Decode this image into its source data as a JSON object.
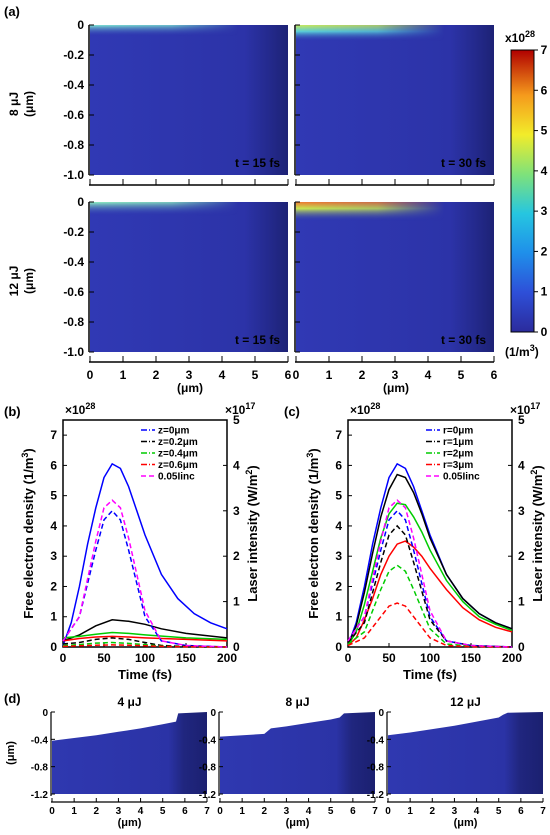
{
  "labels": {
    "a": "(a)",
    "b": "(b)",
    "c": "(c)",
    "d": "(d)",
    "row1": "8 μJ",
    "row2": "12 μJ",
    "um": "(μm)",
    "t15": "t = 15 fs",
    "t30": "t = 30 fs",
    "cb_exp": "x10",
    "cb_exp_pow": "28",
    "cb_unit": "(1/m",
    "cb_unit_sup": "3",
    "cb_unit_close": ")",
    "time": "Time (fs)",
    "ylab_left": "Free electron density (1/m",
    "ylab_left_sup": "3",
    "ylab_left_close": ")",
    "ylab_right": "Laser intensity (W/m",
    "ylab_right_sup": "2",
    "ylab_right_close": ")",
    "mul": "×10",
    "pow28": "28",
    "pow17": "17",
    "d1": "4 μJ",
    "d2": "8 μJ",
    "d3": "12 μJ"
  },
  "chart_data": [
    {
      "id": "a",
      "type": "heatmap",
      "xlim": [
        0,
        6
      ],
      "ylim": [
        -1.0,
        0
      ],
      "xticks": [
        "0",
        "1",
        "2",
        "3",
        "4",
        "5",
        "6"
      ],
      "yticks": [
        "0",
        "-0.2",
        "-0.4",
        "-0.6",
        "-0.8",
        "-1.0"
      ],
      "xlabel": "(μm)",
      "ylabel": "(μm)",
      "panels": [
        {
          "row": "8 μJ",
          "time": "t = 15 fs",
          "peak": 1.2
        },
        {
          "row": "8 μJ",
          "time": "t = 30 fs",
          "peak": 4.0
        },
        {
          "row": "12 μJ",
          "time": "t = 15 fs",
          "peak": 2.5
        },
        {
          "row": "12 μJ",
          "time": "t = 30 fs",
          "peak": 5.5
        }
      ],
      "colorbar": {
        "min": 0,
        "max": 7,
        "ticks": [
          "0",
          "1",
          "2",
          "3",
          "4",
          "5",
          "6",
          "7"
        ],
        "multiplier": "x10^28",
        "unit": "(1/m^3)"
      }
    },
    {
      "id": "b",
      "type": "line",
      "xlabel": "Time (fs)",
      "ylabel": "Free electron density (1/m^3)",
      "ylabel_right": "Laser intensity (W/m^2)",
      "xlim": [
        0,
        200
      ],
      "ylim": [
        0,
        7.5
      ],
      "ylim_right": [
        0,
        5
      ],
      "xticks": [
        "0",
        "50",
        "100",
        "150",
        "200"
      ],
      "yticks": [
        "0",
        "1",
        "2",
        "3",
        "4",
        "5",
        "6",
        "7"
      ],
      "yticks_right": [
        "0",
        "1",
        "2",
        "3",
        "4",
        "5"
      ],
      "multiplier_left": "×10^28",
      "multiplier_right": "×10^17",
      "legend_position": "top-right",
      "legend": [
        "z=0μm",
        "z=0.2μm",
        "z=0.4μm",
        "z=0.6μm",
        "0.05Iinc"
      ],
      "series": [
        {
          "name": "z=0μm",
          "color": "#0000ff",
          "style": "solid",
          "axis": "left",
          "x": [
            0,
            10,
            20,
            30,
            40,
            50,
            60,
            70,
            80,
            90,
            100,
            120,
            140,
            160,
            180,
            200
          ],
          "y": [
            0.05,
            0.8,
            2.0,
            3.4,
            4.6,
            5.6,
            6.05,
            5.9,
            5.3,
            4.5,
            3.7,
            2.4,
            1.6,
            1.1,
            0.8,
            0.6
          ]
        },
        {
          "name": "z=0.2μm",
          "color": "#000000",
          "style": "solid",
          "axis": "left",
          "x": [
            0,
            20,
            40,
            60,
            80,
            100,
            120,
            150,
            200
          ],
          "y": [
            0.2,
            0.4,
            0.7,
            0.9,
            0.85,
            0.75,
            0.6,
            0.45,
            0.3
          ]
        },
        {
          "name": "z=0.4μm",
          "color": "#00cc00",
          "style": "solid",
          "axis": "left",
          "x": [
            0,
            20,
            40,
            60,
            80,
            100,
            150,
            200
          ],
          "y": [
            0.3,
            0.35,
            0.42,
            0.48,
            0.45,
            0.4,
            0.3,
            0.25
          ]
        },
        {
          "name": "z=0.6μm",
          "color": "#ff0000",
          "style": "solid",
          "axis": "left",
          "x": [
            0,
            20,
            40,
            60,
            80,
            100,
            150,
            200
          ],
          "y": [
            0.2,
            0.28,
            0.33,
            0.35,
            0.33,
            0.3,
            0.25,
            0.2
          ]
        },
        {
          "name": "z=0μm (dashed)",
          "color": "#0000ff",
          "style": "dash",
          "axis": "left",
          "x": [
            0,
            20,
            40,
            50,
            60,
            70,
            80,
            100,
            120,
            150,
            200
          ],
          "y": [
            0.2,
            1.0,
            3.2,
            4.2,
            4.5,
            4.2,
            3.2,
            1.0,
            0.2,
            0.05,
            0
          ]
        },
        {
          "name": "z=0.2μm (dashed)",
          "color": "#000000",
          "style": "dash",
          "axis": "left",
          "x": [
            0,
            20,
            40,
            60,
            80,
            100,
            120,
            150,
            200
          ],
          "y": [
            0.1,
            0.15,
            0.25,
            0.3,
            0.25,
            0.15,
            0.05,
            0.02,
            0
          ]
        },
        {
          "name": "z=0.4μm (dashed)",
          "color": "#00cc00",
          "style": "dash",
          "axis": "left",
          "x": [
            0,
            20,
            40,
            60,
            80,
            100,
            120,
            150,
            200
          ],
          "y": [
            0.05,
            0.08,
            0.13,
            0.15,
            0.12,
            0.08,
            0.03,
            0.01,
            0
          ]
        },
        {
          "name": "z=0.6μm (dashed)",
          "color": "#ff0000",
          "style": "dash",
          "axis": "left",
          "x": [
            0,
            20,
            40,
            60,
            80,
            100,
            120,
            150,
            200
          ],
          "y": [
            0.02,
            0.04,
            0.06,
            0.07,
            0.06,
            0.04,
            0.02,
            0.01,
            0
          ]
        },
        {
          "name": "0.05Iinc",
          "color": "#ff00ff",
          "style": "dash",
          "axis": "left",
          "x": [
            0,
            20,
            40,
            50,
            60,
            70,
            80,
            100,
            120,
            150,
            200
          ],
          "y": [
            0.2,
            1.0,
            3.5,
            4.6,
            4.85,
            4.6,
            3.6,
            1.2,
            0.2,
            0.05,
            0
          ]
        }
      ]
    },
    {
      "id": "c",
      "type": "line",
      "xlabel": "Time (fs)",
      "ylabel": "Free electron density (1/m^3)",
      "ylabel_right": "Laser intensity (W/m^2)",
      "xlim": [
        0,
        200
      ],
      "ylim": [
        0,
        7.5
      ],
      "ylim_right": [
        0,
        5
      ],
      "xticks": [
        "0",
        "50",
        "100",
        "150",
        "200"
      ],
      "yticks": [
        "0",
        "1",
        "2",
        "3",
        "4",
        "5",
        "6",
        "7"
      ],
      "yticks_right": [
        "0",
        "1",
        "2",
        "3",
        "4",
        "5"
      ],
      "multiplier_left": "×10^28",
      "multiplier_right": "×10^17",
      "legend_position": "top-right",
      "legend": [
        "r=0μm",
        "r=1μm",
        "r=2μm",
        "r=3μm",
        "0.05Iinc"
      ],
      "series": [
        {
          "name": "r=0μm",
          "color": "#0000ff",
          "style": "solid",
          "axis": "left",
          "x": [
            0,
            10,
            20,
            30,
            40,
            50,
            60,
            70,
            80,
            90,
            100,
            120,
            140,
            160,
            180,
            200
          ],
          "y": [
            0.05,
            0.8,
            2.0,
            3.4,
            4.6,
            5.6,
            6.05,
            5.9,
            5.3,
            4.5,
            3.7,
            2.4,
            1.6,
            1.1,
            0.8,
            0.6
          ]
        },
        {
          "name": "r=1μm",
          "color": "#000000",
          "style": "solid",
          "axis": "left",
          "x": [
            0,
            10,
            20,
            30,
            40,
            50,
            60,
            70,
            80,
            90,
            100,
            120,
            140,
            160,
            180,
            200
          ],
          "y": [
            0.05,
            0.7,
            1.8,
            3.1,
            4.3,
            5.2,
            5.7,
            5.6,
            5.1,
            4.4,
            3.6,
            2.4,
            1.6,
            1.1,
            0.8,
            0.6
          ]
        },
        {
          "name": "r=2μm",
          "color": "#00cc00",
          "style": "solid",
          "axis": "left",
          "x": [
            0,
            10,
            20,
            30,
            40,
            50,
            60,
            70,
            80,
            90,
            100,
            120,
            140,
            160,
            180,
            200
          ],
          "y": [
            0.05,
            0.5,
            1.4,
            2.5,
            3.6,
            4.4,
            4.75,
            4.7,
            4.3,
            3.8,
            3.2,
            2.2,
            1.5,
            1.0,
            0.75,
            0.55
          ]
        },
        {
          "name": "r=3μm",
          "color": "#ff0000",
          "style": "solid",
          "axis": "left",
          "x": [
            0,
            10,
            20,
            30,
            40,
            50,
            60,
            70,
            80,
            90,
            100,
            120,
            140,
            160,
            180,
            200
          ],
          "y": [
            0.05,
            0.3,
            0.9,
            1.6,
            2.4,
            3.0,
            3.4,
            3.5,
            3.3,
            3.0,
            2.6,
            1.9,
            1.3,
            0.9,
            0.65,
            0.5
          ]
        },
        {
          "name": "r=0μm (dashed)",
          "color": "#0000ff",
          "style": "dash",
          "axis": "left",
          "x": [
            0,
            20,
            40,
            50,
            60,
            70,
            80,
            100,
            120,
            150,
            200
          ],
          "y": [
            0.2,
            1.0,
            3.2,
            4.2,
            4.5,
            4.2,
            3.2,
            1.0,
            0.2,
            0.05,
            0
          ]
        },
        {
          "name": "r=1μm (dashed)",
          "color": "#000000",
          "style": "dash",
          "axis": "left",
          "x": [
            0,
            20,
            40,
            50,
            60,
            70,
            80,
            100,
            120,
            150,
            200
          ],
          "y": [
            0.15,
            0.8,
            2.8,
            3.7,
            4.0,
            3.7,
            2.8,
            0.9,
            0.2,
            0.05,
            0
          ]
        },
        {
          "name": "r=2μm (dashed)",
          "color": "#00cc00",
          "style": "dash",
          "axis": "left",
          "x": [
            0,
            20,
            40,
            50,
            60,
            70,
            80,
            100,
            120,
            150,
            200
          ],
          "y": [
            0.1,
            0.5,
            1.9,
            2.5,
            2.7,
            2.5,
            1.9,
            0.6,
            0.1,
            0.03,
            0
          ]
        },
        {
          "name": "r=3μm (dashed)",
          "color": "#ff0000",
          "style": "dash",
          "axis": "left",
          "x": [
            0,
            20,
            40,
            50,
            60,
            70,
            80,
            100,
            120,
            150,
            200
          ],
          "y": [
            0.05,
            0.3,
            1.0,
            1.35,
            1.45,
            1.35,
            1.0,
            0.3,
            0.05,
            0.01,
            0
          ]
        },
        {
          "name": "0.05Iinc",
          "color": "#ff00ff",
          "style": "dash",
          "axis": "left",
          "x": [
            0,
            20,
            40,
            50,
            60,
            70,
            80,
            100,
            120,
            150,
            200
          ],
          "y": [
            0.2,
            1.0,
            3.5,
            4.6,
            4.85,
            4.6,
            3.6,
            1.2,
            0.2,
            0.05,
            0
          ]
        }
      ]
    },
    {
      "id": "d",
      "type": "area",
      "xlim": [
        0,
        7
      ],
      "ylim": [
        -1.2,
        0
      ],
      "xticks": [
        "0",
        "1",
        "2",
        "3",
        "4",
        "5",
        "6",
        "7"
      ],
      "yticks": [
        "0",
        "-0.4",
        "-0.8",
        "-1.2"
      ],
      "xlabel": "(μm)",
      "ylabel": "(μm)",
      "panels": [
        {
          "title": "4 μJ",
          "profile_x": [
            0,
            1,
            2,
            3,
            4,
            5,
            5.6,
            5.7,
            7
          ],
          "profile_y": [
            -0.42,
            -0.38,
            -0.34,
            -0.29,
            -0.24,
            -0.18,
            -0.14,
            -0.02,
            0
          ]
        },
        {
          "title": "8 μJ",
          "profile_x": [
            0,
            2,
            2.3,
            3,
            4,
            5,
            5.4,
            5.6,
            7
          ],
          "profile_y": [
            -0.36,
            -0.32,
            -0.24,
            -0.21,
            -0.16,
            -0.11,
            -0.08,
            -0.02,
            0
          ]
        },
        {
          "title": "12 μJ",
          "profile_x": [
            0,
            1,
            2,
            3,
            4,
            5,
            5.2,
            5.4,
            7
          ],
          "profile_y": [
            -0.34,
            -0.3,
            -0.25,
            -0.2,
            -0.14,
            -0.08,
            -0.04,
            -0.01,
            0
          ]
        }
      ]
    }
  ]
}
